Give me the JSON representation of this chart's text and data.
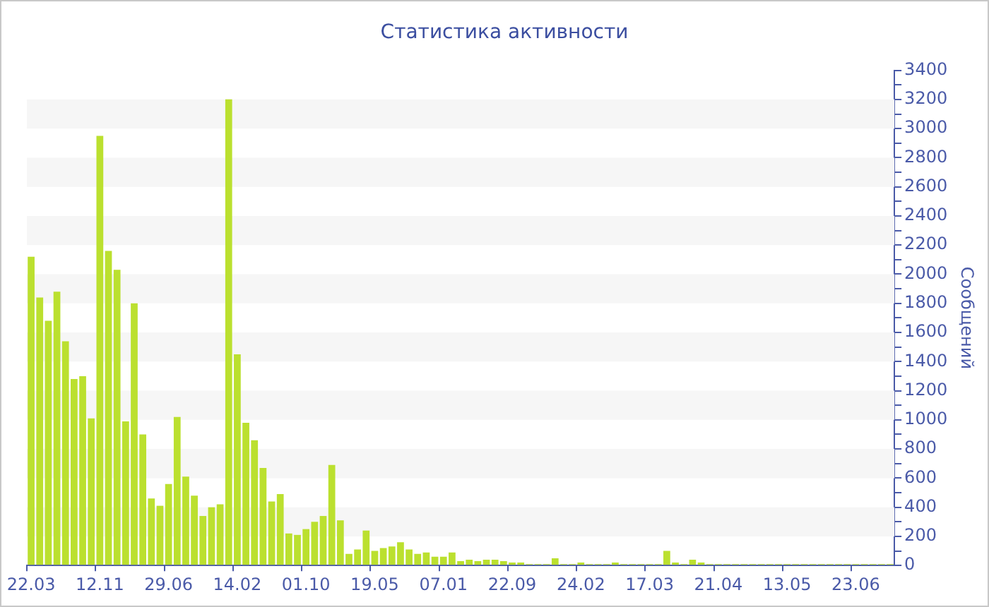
{
  "chart_data": {
    "type": "bar",
    "title": "Статистика активности",
    "ylabel": "Сообщений",
    "categories": [
      "22.03",
      null,
      null,
      null,
      null,
      null,
      null,
      null,
      "12.11",
      null,
      null,
      null,
      null,
      null,
      null,
      null,
      "29.06",
      null,
      null,
      null,
      null,
      null,
      null,
      null,
      "14.02",
      null,
      null,
      null,
      null,
      null,
      null,
      null,
      "01.10",
      null,
      null,
      null,
      null,
      null,
      null,
      null,
      "19.05",
      null,
      null,
      null,
      null,
      null,
      null,
      null,
      "07.01",
      null,
      null,
      null,
      null,
      null,
      null,
      null,
      "22.09",
      null,
      null,
      null,
      null,
      null,
      null,
      null,
      "24.02",
      null,
      null,
      null,
      null,
      null,
      null,
      null,
      "17.03",
      null,
      null,
      null,
      null,
      null,
      null,
      null,
      "21.04",
      null,
      null,
      null,
      null,
      null,
      null,
      null,
      "13.05",
      null,
      null,
      null,
      null,
      null,
      null,
      null,
      "23.06",
      null,
      null,
      null,
      null
    ],
    "values": [
      2120,
      1840,
      1680,
      1880,
      1540,
      1280,
      1300,
      1010,
      2950,
      2160,
      2030,
      990,
      1800,
      900,
      460,
      410,
      560,
      1020,
      610,
      480,
      340,
      400,
      420,
      3200,
      1450,
      980,
      860,
      670,
      440,
      490,
      220,
      210,
      250,
      300,
      340,
      690,
      310,
      80,
      110,
      240,
      100,
      120,
      130,
      160,
      110,
      80,
      90,
      60,
      60,
      90,
      30,
      40,
      30,
      40,
      40,
      30,
      20,
      20,
      10,
      10,
      10,
      50,
      10,
      10,
      20,
      10,
      10,
      10,
      20,
      10,
      10,
      10,
      10,
      10,
      100,
      20,
      10,
      40,
      20,
      10,
      10,
      10,
      10,
      10,
      10,
      10,
      10,
      10,
      10,
      10,
      10,
      10,
      10,
      10,
      10,
      10,
      10,
      10,
      10,
      10,
      10
    ],
    "color": "#bbe02f",
    "ylim": [
      0,
      3400
    ],
    "yticks": [
      0,
      {
        "value": 100,
        "label": null
      },
      200,
      {
        "value": 300,
        "label": null
      },
      400,
      {
        "value": 500,
        "label": null
      },
      600,
      {
        "value": 700,
        "label": null
      },
      800,
      {
        "value": 900,
        "label": null
      },
      1000,
      {
        "value": 1100,
        "label": null
      },
      1200,
      {
        "value": 1300,
        "label": null
      },
      1400,
      {
        "value": 1500,
        "label": null
      },
      1600,
      {
        "value": 1700,
        "label": null
      },
      1800,
      {
        "value": 1900,
        "label": null
      },
      2000,
      {
        "value": 2100,
        "label": null
      },
      2200,
      {
        "value": 2300,
        "label": null
      },
      2400,
      {
        "value": 2500,
        "label": null
      },
      2600,
      {
        "value": 2700,
        "label": null
      },
      2800,
      {
        "value": 2900,
        "label": null
      },
      3000,
      {
        "value": 3100,
        "label": null
      },
      3200,
      {
        "value": 3300,
        "label": null
      },
      3400
    ]
  }
}
